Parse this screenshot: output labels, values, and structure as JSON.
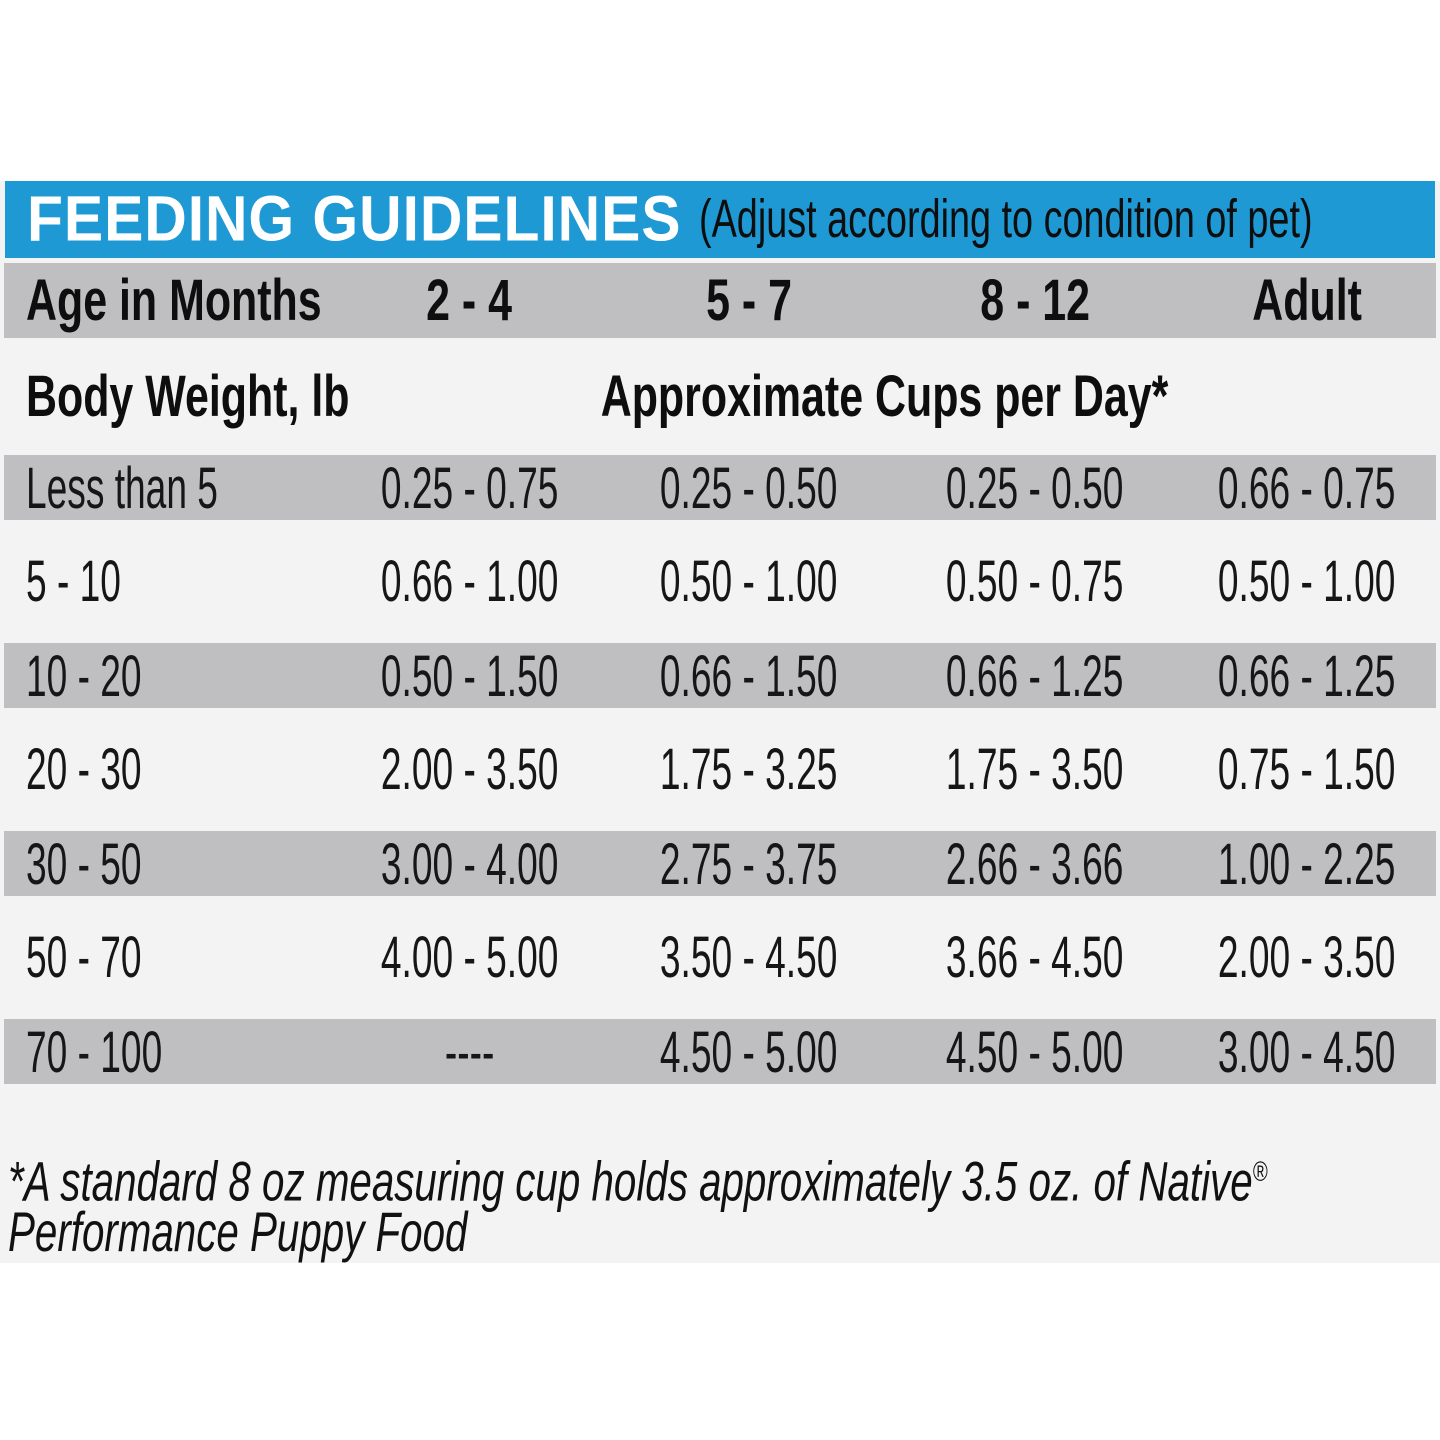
{
  "header": {
    "title": "FEEDING GUIDELINES",
    "subtitle": "(Adjust according to condition of pet)"
  },
  "table": {
    "age_header": {
      "label": "Age in Months",
      "columns": [
        "2 - 4",
        "5 - 7",
        "8 - 12",
        "Adult"
      ]
    },
    "weight_header": {
      "label": "Body Weight, lb",
      "columns_label": "Approximate Cups per Day*"
    },
    "rows": [
      {
        "weight": "Less than 5",
        "values": [
          "0.25 - 0.75",
          "0.25 - 0.50",
          "0.25 - 0.50",
          "0.66 - 0.75"
        ]
      },
      {
        "weight": "5 - 10",
        "values": [
          "0.66 - 1.00",
          "0.50 - 1.00",
          "0.50 - 0.75",
          "0.50 - 1.00"
        ]
      },
      {
        "weight": "10 - 20",
        "values": [
          "0.50 - 1.50",
          "0.66 - 1.50",
          "0.66 - 1.25",
          "0.66 - 1.25"
        ]
      },
      {
        "weight": "20 - 30",
        "values": [
          "2.00 - 3.50",
          "1.75 - 3.25",
          "1.75 - 3.50",
          "0.75 - 1.50"
        ]
      },
      {
        "weight": "30 - 50",
        "values": [
          "3.00 - 4.00",
          "2.75 - 3.75",
          "2.66 - 3.66",
          "1.00 - 2.25"
        ]
      },
      {
        "weight": "50 - 70",
        "values": [
          "4.00 - 5.00",
          "3.50 - 4.50",
          "3.66 - 4.50",
          "2.00 - 3.50"
        ]
      },
      {
        "weight": "70 - 100",
        "values": [
          "----",
          "4.50 - 5.00",
          "4.50 - 5.00",
          "3.00 - 4.50"
        ]
      }
    ]
  },
  "footnote": {
    "line1": "*A standard 8 oz measuring cup holds approximately 3.5 oz. of Native",
    "reg_mark": "®",
    "line2": "Performance Puppy Food"
  },
  "colors": {
    "accent_blue": "#1E99D4",
    "stripe_gray": "#BFBFC1",
    "card_bg": "#F3F3F4",
    "text_black": "#141414",
    "title_white": "#FFFFFF"
  }
}
